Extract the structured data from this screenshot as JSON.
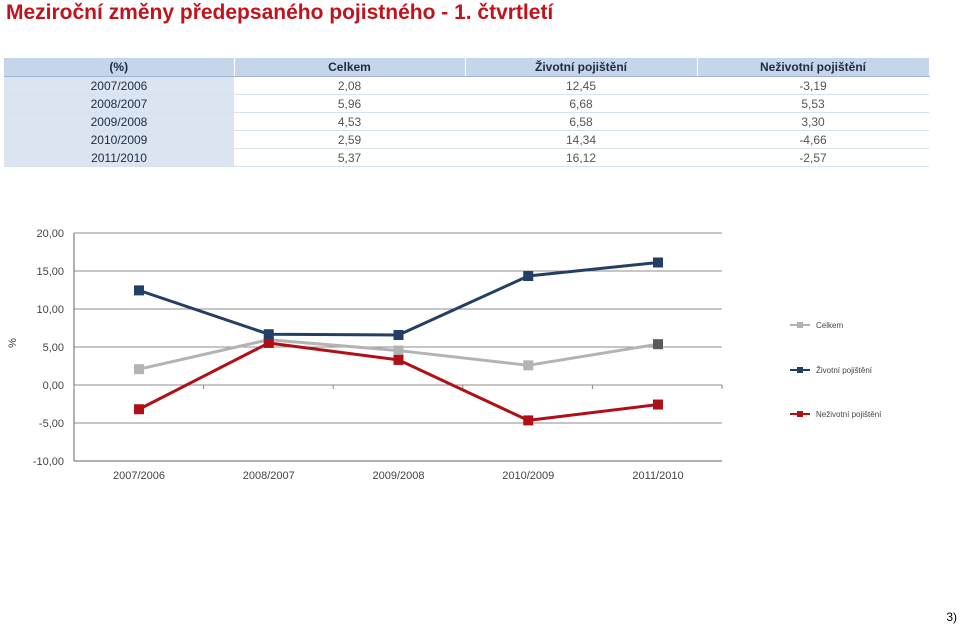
{
  "title": "Meziroční změny předepsaného pojistného - 1. čtvrtletí",
  "table": {
    "headers": [
      "(%)",
      "Celkem",
      "Životní pojištění",
      "Neživotní pojištění"
    ],
    "rows": [
      [
        "2007/2006",
        "2,08",
        "12,45",
        "-3,19"
      ],
      [
        "2008/2007",
        "5,96",
        "6,68",
        "5,53"
      ],
      [
        "2009/2008",
        "4,53",
        "6,58",
        "3,30"
      ],
      [
        "2010/2009",
        "2,59",
        "14,34",
        "-4,66"
      ],
      [
        "2011/2010",
        "5,37",
        "16,12",
        "-2,57"
      ]
    ]
  },
  "chart_data": {
    "type": "line",
    "categories": [
      "2007/2006",
      "2008/2007",
      "2009/2008",
      "2010/2009",
      "2011/2010"
    ],
    "ylabel": "%",
    "ylim": [
      -10,
      20
    ],
    "ytick_step": 5,
    "ytick_labels": [
      "20,00",
      "15,00",
      "10,00",
      "5,00",
      "0,00",
      "-5,00",
      "-10,00"
    ],
    "grid": true,
    "legend_position": "right",
    "series": [
      {
        "name": "Celkem",
        "values": [
          2.08,
          5.96,
          4.53,
          2.59,
          5.37
        ],
        "color": "#b3b3b3",
        "last_marker_color": "#5a5a5a"
      },
      {
        "name": "Životní pojištění",
        "values": [
          12.45,
          6.68,
          6.58,
          14.34,
          16.12
        ],
        "color": "#243f66"
      },
      {
        "name": "Neživotní pojištění",
        "values": [
          -3.19,
          5.53,
          3.3,
          -4.66,
          -2.57
        ],
        "color": "#b01015"
      }
    ]
  },
  "page_number": "3)"
}
